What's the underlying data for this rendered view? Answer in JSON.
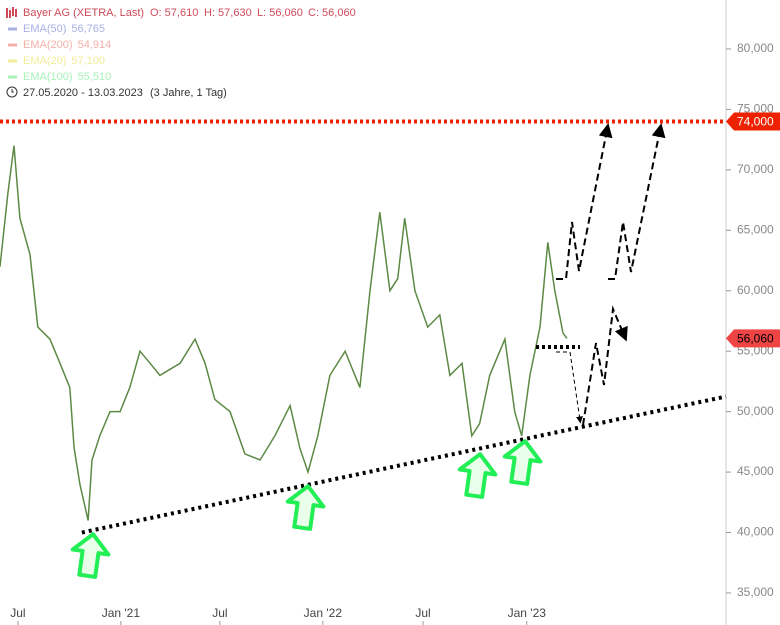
{
  "chart_data": {
    "type": "line",
    "legend": {
      "title": "Bayer AG (XETRA, Last)",
      "open": "O: 57,610",
      "high": "H: 57,630",
      "low": "L: 56,060",
      "close": "C: 56,060",
      "indicators": [
        {
          "name": "EMA(50)",
          "value": "56,765",
          "color": "#a8b0e4"
        },
        {
          "name": "EMA(200)",
          "value": "54,914",
          "color": "#f2b0a8"
        },
        {
          "name": "EMA(20)",
          "value": "57,100",
          "color": "#f2ec9a"
        },
        {
          "name": "EMA(100)",
          "value": "55,510",
          "color": "#a8f2b8"
        }
      ],
      "period": "27.05.2020 - 13.03.2023",
      "span": "(3 Jahre, 1 Tag)"
    },
    "series": [
      {
        "name": "Bayer AG",
        "color": "#5c8a44",
        "x": [
          0,
          2,
          3.6,
          5.1,
          7.7,
          9.7,
          12.8,
          15.4,
          17.9,
          19,
          20.5,
          22.6,
          23.6,
          25.6,
          28.2,
          30.8,
          33.3,
          35.9,
          38.5,
          41,
          43.6,
          46.2,
          50,
          52.6,
          55.1,
          59,
          62.8,
          66.7,
          70.5,
          74.4,
          76.9,
          79,
          81.5,
          84.6,
          88.5,
          92.3,
          94.9,
          97.4,
          100,
          102,
          103.8,
          106.4,
          109.7,
          112.8,
          115.4,
          118.5,
          121,
          123,
          125.6,
          129.5,
          132,
          133.8,
          135.9,
          138.5,
          140.5,
          142.3,
          144.4,
          145.4
        ],
        "values": [
          62000,
          68000,
          72000,
          66000,
          63000,
          57000,
          56000,
          54000,
          52000,
          47000,
          44000,
          41000,
          46000,
          48000,
          50000,
          50000,
          52000,
          55000,
          54000,
          53000,
          53500,
          54000,
          56000,
          54000,
          51000,
          50000,
          46500,
          46000,
          48000,
          50500,
          47000,
          45000,
          48000,
          53000,
          55000,
          52000,
          60000,
          66500,
          60000,
          61000,
          66000,
          60000,
          57000,
          58000,
          53000,
          54000,
          48000,
          49000,
          53000,
          56000,
          50000,
          48000,
          53000,
          57000,
          64000,
          60000,
          56500,
          56060
        ]
      }
    ],
    "resistance": {
      "value": 74000,
      "label": "74,000",
      "color": "#ee2200"
    },
    "last_price": {
      "value": 56060,
      "label": "56,060",
      "color": "#ee4444"
    },
    "support": {
      "x": [
        21,
        186.2
      ],
      "values": [
        40000,
        51250
      ]
    },
    "xlim": [
      0,
      186.2
    ],
    "xticks": [
      {
        "value": 4.6,
        "label": "Jul"
      },
      {
        "value": 31,
        "label": "Jan '21"
      },
      {
        "value": 56.4,
        "label": "Jul"
      },
      {
        "value": 82.8,
        "label": "Jan '22"
      },
      {
        "value": 108.5,
        "label": "Jul"
      },
      {
        "value": 135.1,
        "label": "Jan '23"
      }
    ],
    "ylim": [
      32350,
      84050
    ],
    "yticks": [
      {
        "value": 35000,
        "label": "35,000"
      },
      {
        "value": 40000,
        "label": "40,000"
      },
      {
        "value": 45000,
        "label": "45,000"
      },
      {
        "value": 50000,
        "label": "50,000"
      },
      {
        "value": 55000,
        "label": "55,000"
      },
      {
        "value": 60000,
        "label": "60,000"
      },
      {
        "value": 65000,
        "label": "65,000"
      },
      {
        "value": 70000,
        "label": "70,000"
      },
      {
        "value": 75000,
        "label": "75,000"
      },
      {
        "value": 80000,
        "label": "80,000"
      }
    ]
  }
}
